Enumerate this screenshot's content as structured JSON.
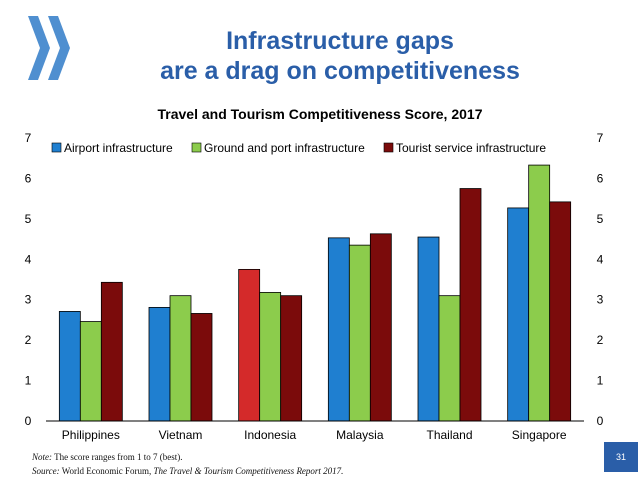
{
  "slide": {
    "title_line1": "Infrastructure gaps",
    "title_line2": "are a drag on competitiveness",
    "note_label": "Note:",
    "note_text": " The score ranges from 1 to 7 (best).",
    "source_label": "Source:",
    "source_text": " World Economic Forum, ",
    "source_report": "The Travel & Tourism Competitiveness Report 2017.",
    "page_number": "31"
  },
  "colors": {
    "title": "#2a5ea8",
    "logo": "#4f8fd0",
    "page_badge": "#2a5ea8",
    "highlight": "#d42a2a"
  },
  "chart_data": {
    "type": "bar",
    "title": "Travel and Tourism Competitiveness Score, 2017",
    "categories": [
      "Philippines",
      "Vietnam",
      "Indonesia",
      "Malaysia",
      "Thailand",
      "Singapore"
    ],
    "series": [
      {
        "name": "Airport infrastructure",
        "color": "#1f7fd0",
        "values": [
          2.71,
          2.81,
          3.75,
          4.53,
          4.55,
          5.27
        ]
      },
      {
        "name": "Ground and port infrastructure",
        "color": "#8ccc4c",
        "values": [
          2.46,
          3.1,
          3.18,
          4.35,
          3.1,
          6.33
        ]
      },
      {
        "name": "Tourist service infrastructure",
        "color": "#7b0b0b",
        "values": [
          3.43,
          2.66,
          3.1,
          4.63,
          5.75,
          5.42
        ]
      }
    ],
    "highlight": {
      "series": 0,
      "category": 2
    },
    "ylim": [
      0,
      7
    ],
    "yticks": [
      0,
      1,
      2,
      3,
      4,
      5,
      6,
      7
    ],
    "ytick_labels": [
      "0",
      "1",
      "2",
      "3",
      "4",
      "5",
      "6",
      "7"
    ],
    "right_axis": true,
    "grid": false,
    "legend_position": "top"
  }
}
